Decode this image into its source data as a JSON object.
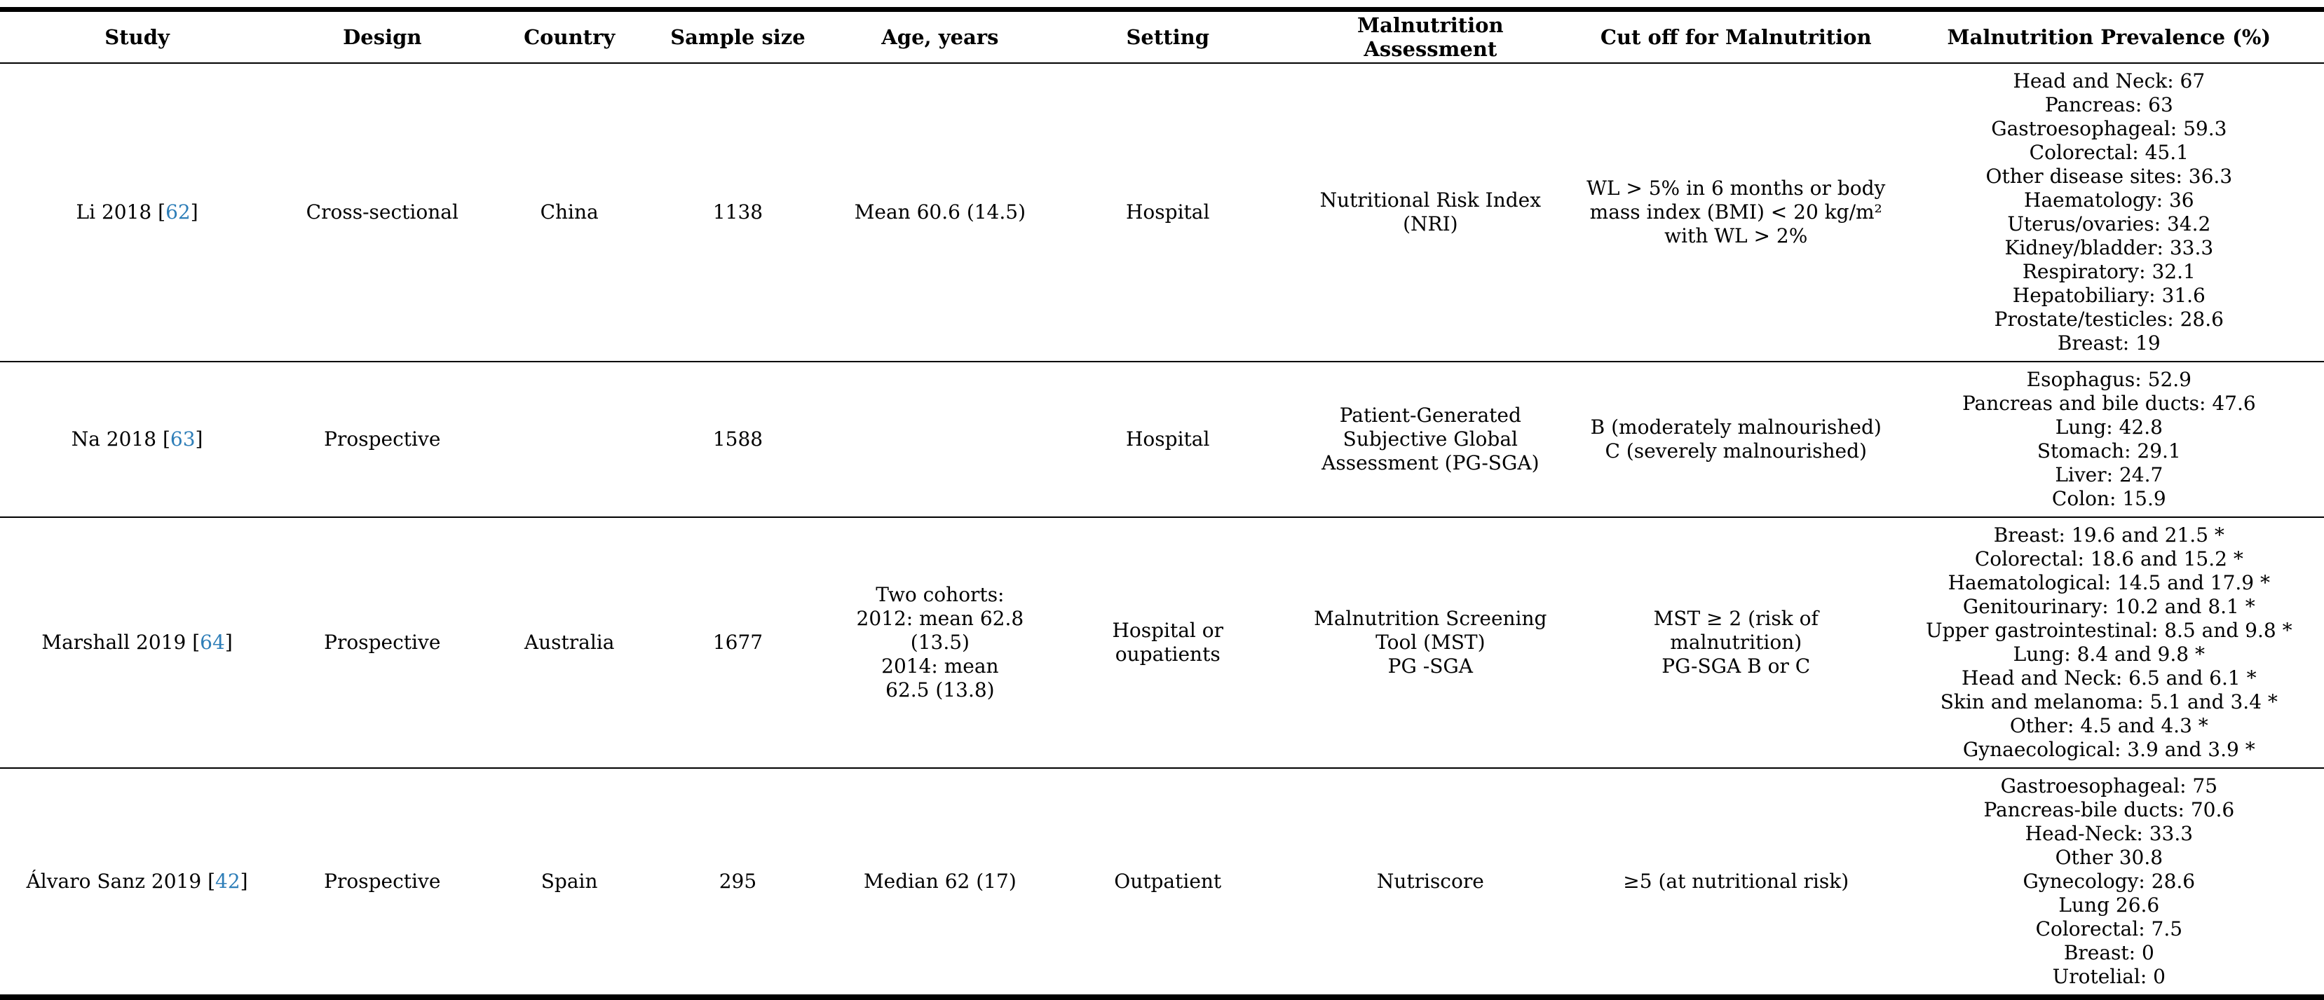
{
  "link_color": "#2e7eb8",
  "table": {
    "columns": [
      "Study",
      "Design",
      "Country",
      "Sample size",
      "Age, years",
      "Setting",
      "Malnutrition Assessment",
      "Cut off for Malnutrition",
      "Malnutrition Prevalence (%)"
    ],
    "rows": [
      {
        "study": "Li 2018",
        "ref_open": "[",
        "ref": "62",
        "ref_close": "]",
        "design": "Cross-sectional",
        "country": "China",
        "sample_size": "1138",
        "age": [
          "Mean 60.6 (14.5)"
        ],
        "setting": "Hospital",
        "assessment": [
          "Nutritional Risk Index",
          "(NRI)"
        ],
        "cutoff": [
          "WL > 5% in 6 months or body",
          "mass index (BMI) < 20 kg/m²",
          "with WL > 2%"
        ],
        "prevalence": [
          "Head and Neck: 67",
          "Pancreas: 63",
          "Gastroesophageal: 59.3",
          "Colorectal: 45.1",
          "Other disease sites: 36.3",
          "Haematology: 36",
          "Uterus/ovaries: 34.2",
          "Kidney/bladder: 33.3",
          "Respiratory: 32.1",
          "Hepatobiliary: 31.6",
          "Prostate/testicles: 28.6",
          "Breast: 19"
        ]
      },
      {
        "study": "Na 2018",
        "ref_open": "[",
        "ref": "63",
        "ref_close": "]",
        "design": "Prospective",
        "country": "",
        "sample_size": "1588",
        "age": [],
        "setting": "Hospital",
        "assessment": [
          "Patient-Generated",
          "Subjective Global",
          "Assessment (PG-SGA)"
        ],
        "cutoff": [
          "B (moderately malnourished)",
          "C (severely malnourished)"
        ],
        "prevalence": [
          "Esophagus: 52.9",
          "Pancreas and bile ducts: 47.6",
          "Lung: 42.8",
          "Stomach: 29.1",
          "Liver: 24.7",
          "Colon: 15.9"
        ]
      },
      {
        "study": "Marshall 2019",
        "ref_open": "[",
        "ref": "64",
        "ref_close": "]",
        "design": "Prospective",
        "country": "Australia",
        "sample_size": "1677",
        "age": [
          "Two cohorts:",
          "2012: mean 62.8 (13.5)",
          "2014: mean",
          "62.5 (13.8)"
        ],
        "setting": "Hospital or oupatients",
        "assessment": [
          "Malnutrition Screening",
          "Tool (MST)",
          "PG -SGA"
        ],
        "cutoff": [
          "MST ≥ 2 (risk of malnutrition)",
          "PG-SGA B or C"
        ],
        "prevalence": [
          "Breast: 19.6 and 21.5 *",
          "Colorectal: 18.6 and 15.2 *",
          "Haematological: 14.5 and 17.9 *",
          "Genitourinary: 10.2 and 8.1 *",
          "Upper gastrointestinal: 8.5 and 9.8 *",
          "Lung: 8.4 and 9.8 *",
          "Head and Neck: 6.5 and 6.1 *",
          "Skin and melanoma: 5.1 and 3.4 *",
          "Other: 4.5 and 4.3 *",
          "Gynaecological: 3.9 and 3.9 *"
        ]
      },
      {
        "study": "Álvaro Sanz 2019",
        "ref_open": "[",
        "ref": "42",
        "ref_close": "]",
        "design": "Prospective",
        "country": "Spain",
        "sample_size": "295",
        "age": [
          "Median 62 (17)"
        ],
        "setting": "Outpatient",
        "assessment": [
          "Nutriscore"
        ],
        "cutoff": [
          "≥5 (at nutritional risk)"
        ],
        "prevalence": [
          "Gastroesophageal: 75",
          "Pancreas-bile ducts: 70.6",
          "Head-Neck: 33.3",
          "Other 30.8",
          "Gynecology: 28.6",
          "Lung 26.6",
          "Colorectal: 7.5",
          "Breast: 0",
          "Urotelial: 0"
        ]
      }
    ]
  }
}
